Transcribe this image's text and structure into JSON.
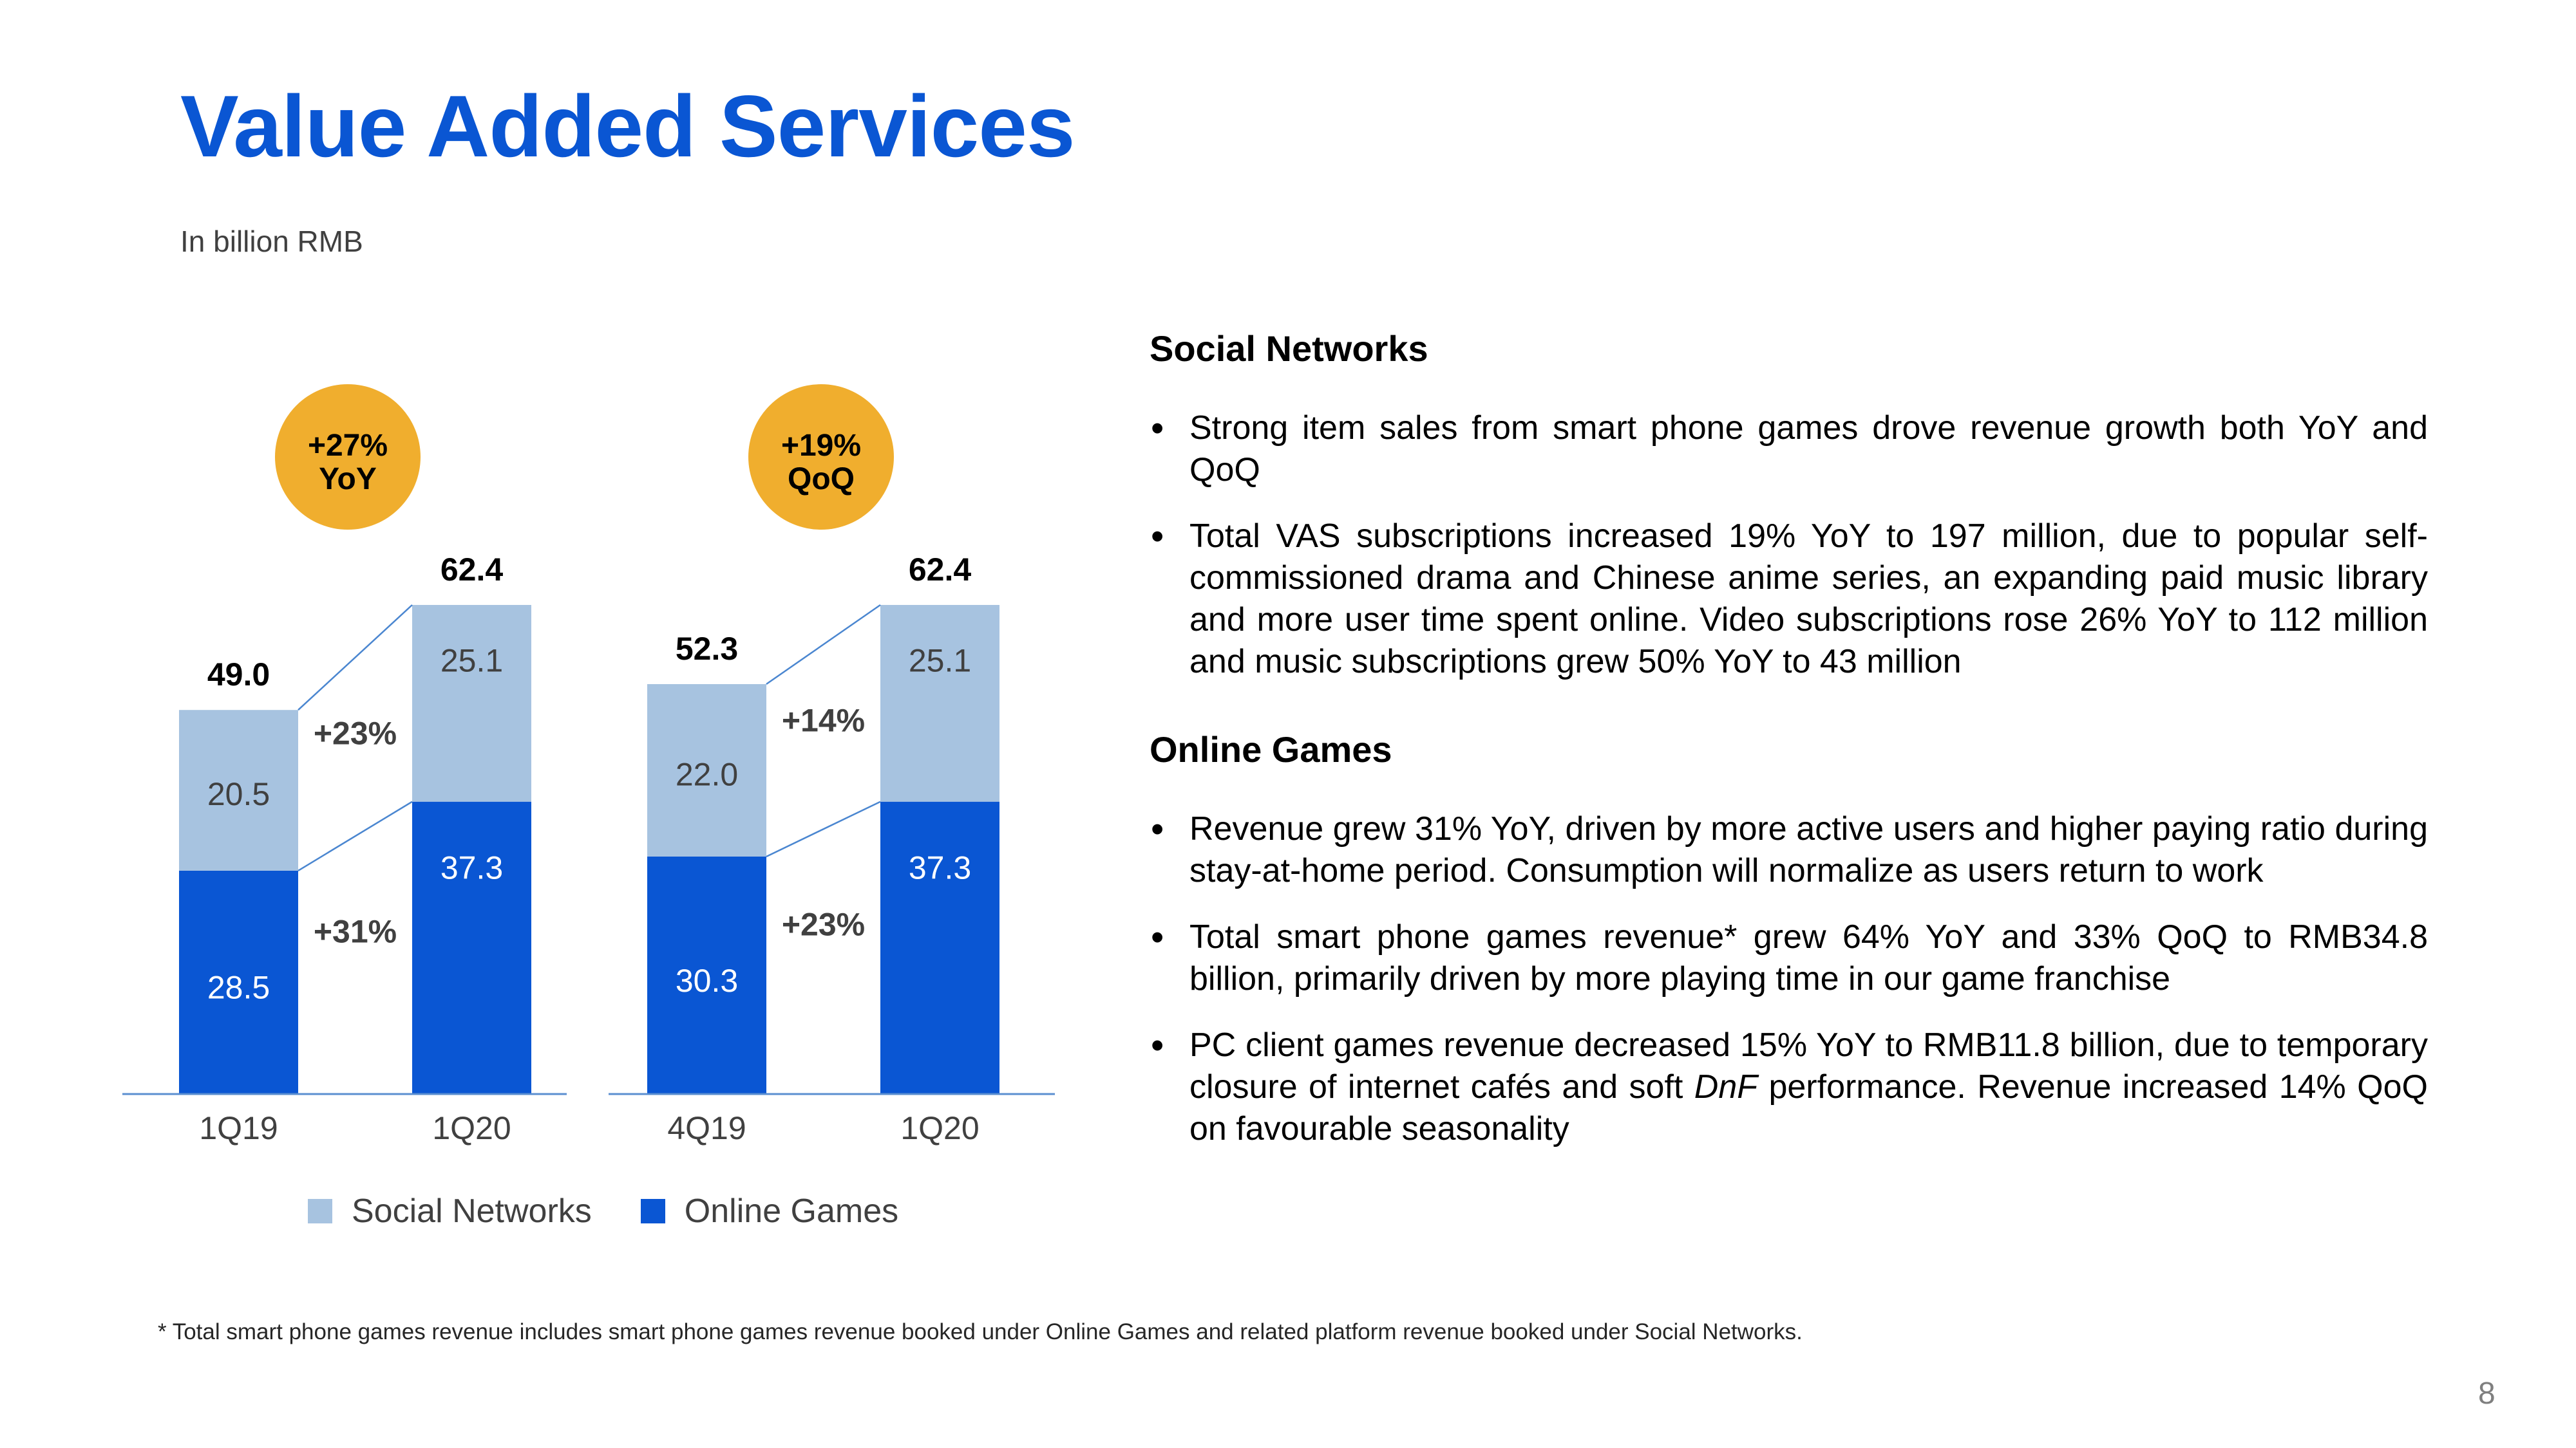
{
  "title": "Value Added Services",
  "subtitle": "In billion RMB",
  "colors": {
    "title_blue": "#0a56d3",
    "social_networks": "#a7c3e0",
    "online_games": "#0a56d3",
    "badge": "#f0ae2e",
    "connector": "#4a86d0",
    "axis": "#5b8fd0"
  },
  "chart_data": [
    {
      "type": "bar",
      "stacked": true,
      "categories": [
        "1Q19",
        "1Q20"
      ],
      "series": [
        {
          "name": "Online Games",
          "values": [
            28.5,
            37.3
          ],
          "labels": [
            "28.5",
            "37.3"
          ]
        },
        {
          "name": "Social Networks",
          "values": [
            20.5,
            25.1
          ],
          "labels": [
            "20.5",
            "25.1"
          ]
        }
      ],
      "totals": [
        49.0,
        62.4
      ],
      "total_labels": [
        "49.0",
        "62.4"
      ],
      "growth": {
        "total": "+27%\nYoY",
        "total_line1": "+27%",
        "total_line2": "YoY",
        "social_networks": "+23%",
        "online_games": "+31%"
      },
      "ylim": [
        0,
        62.4
      ]
    },
    {
      "type": "bar",
      "stacked": true,
      "categories": [
        "4Q19",
        "1Q20"
      ],
      "series": [
        {
          "name": "Online Games",
          "values": [
            30.3,
            37.3
          ],
          "labels": [
            "30.3",
            "37.3"
          ]
        },
        {
          "name": "Social Networks",
          "values": [
            22.0,
            25.1
          ],
          "labels": [
            "22.0",
            "25.1"
          ]
        }
      ],
      "totals": [
        52.3,
        62.4
      ],
      "total_labels": [
        "52.3",
        "62.4"
      ],
      "growth": {
        "total_line1": "+19%",
        "total_line2": "QoQ",
        "social_networks": "+14%",
        "online_games": "+23%"
      },
      "ylim": [
        0,
        62.4
      ]
    }
  ],
  "legend": [
    {
      "name": "Social Networks"
    },
    {
      "name": "Online Games"
    }
  ],
  "commentary": {
    "social_networks": {
      "heading": "Social Networks",
      "bullets": [
        "Strong item sales from smart phone games drove revenue growth both YoY and QoQ",
        "Total VAS subscriptions increased 19% YoY to 197 million, due to popular self-commissioned drama and Chinese anime series, an expanding paid music library and more user time spent online. Video subscriptions rose 26% YoY to 112 million and music subscriptions grew 50% YoY to 43 million"
      ]
    },
    "online_games": {
      "heading": "Online Games",
      "bullets": [
        "Revenue grew 31% YoY, driven by more active users and higher paying ratio during stay-at-home period. Consumption will normalize as users return to work",
        "Total smart phone games revenue* grew 64% YoY and 33% QoQ to RMB34.8 billion, primarily driven by more playing time in our game franchise"
      ],
      "pc_bullet": {
        "before": "PC client games revenue decreased 15% YoY to RMB11.8 billion, due to temporary closure of internet cafés and soft ",
        "italic": "DnF",
        "after": " performance. Revenue increased 14% QoQ on favourable seasonality"
      }
    }
  },
  "footnote": "* Total smart phone games revenue includes smart phone games revenue booked under Online Games and related platform revenue booked under Social Networks.",
  "page_number": "8"
}
